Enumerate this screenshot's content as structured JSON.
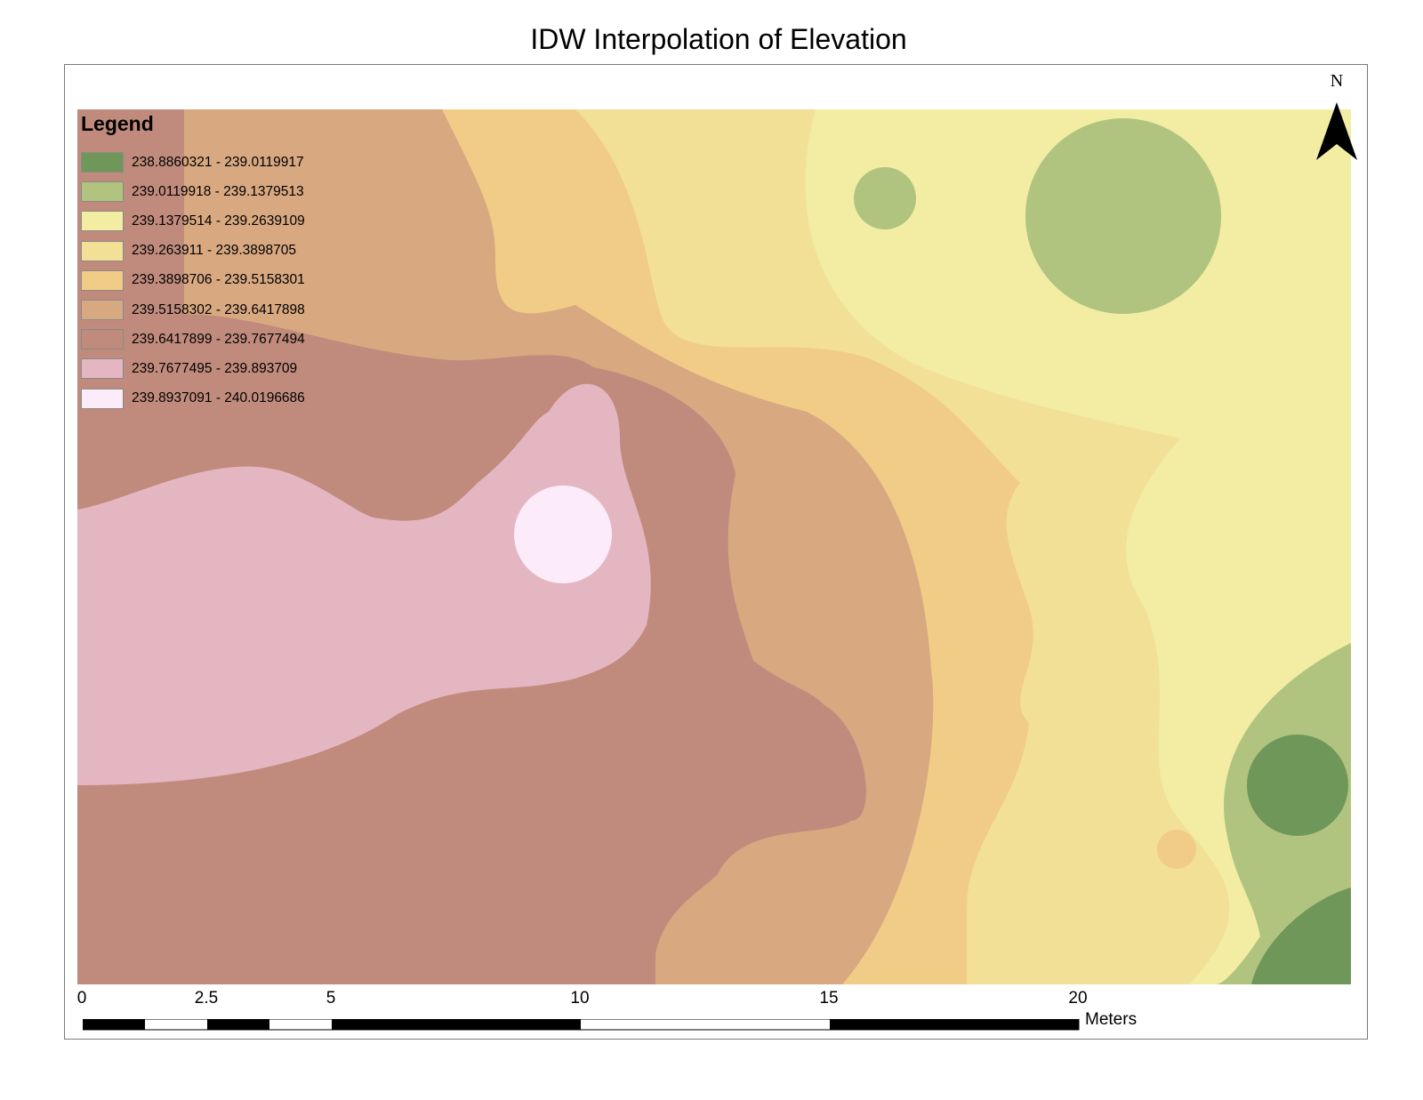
{
  "title": "IDW Interpolation of Elevation",
  "legend": {
    "title": "Legend",
    "items": [
      {
        "label": "238.8860321 - 239.0119917",
        "color": "#70975a"
      },
      {
        "label": "239.0119918 - 239.1379513",
        "color": "#b0c47f"
      },
      {
        "label": "239.1379514 - 239.2639109",
        "color": "#f2eda3"
      },
      {
        "label": "239.263911 - 239.3898705",
        "color": "#f2e097"
      },
      {
        "label": "239.3898706 - 239.5158301",
        "color": "#f1cc87"
      },
      {
        "label": "239.5158302 - 239.6417898",
        "color": "#d8a881"
      },
      {
        "label": "239.6417899 - 239.7677494",
        "color": "#c08b7c"
      },
      {
        "label": "239.7677495 - 239.893709",
        "color": "#e4b6c1"
      },
      {
        "label": "239.8937091 - 240.0196686",
        "color": "#fcecfa"
      }
    ]
  },
  "north_arrow": {
    "label": "N",
    "icon": "north-arrow-icon"
  },
  "scale_bar": {
    "ticks": [
      "0",
      "2.5",
      "5",
      "10",
      "15",
      "20"
    ],
    "units": "Meters"
  }
}
